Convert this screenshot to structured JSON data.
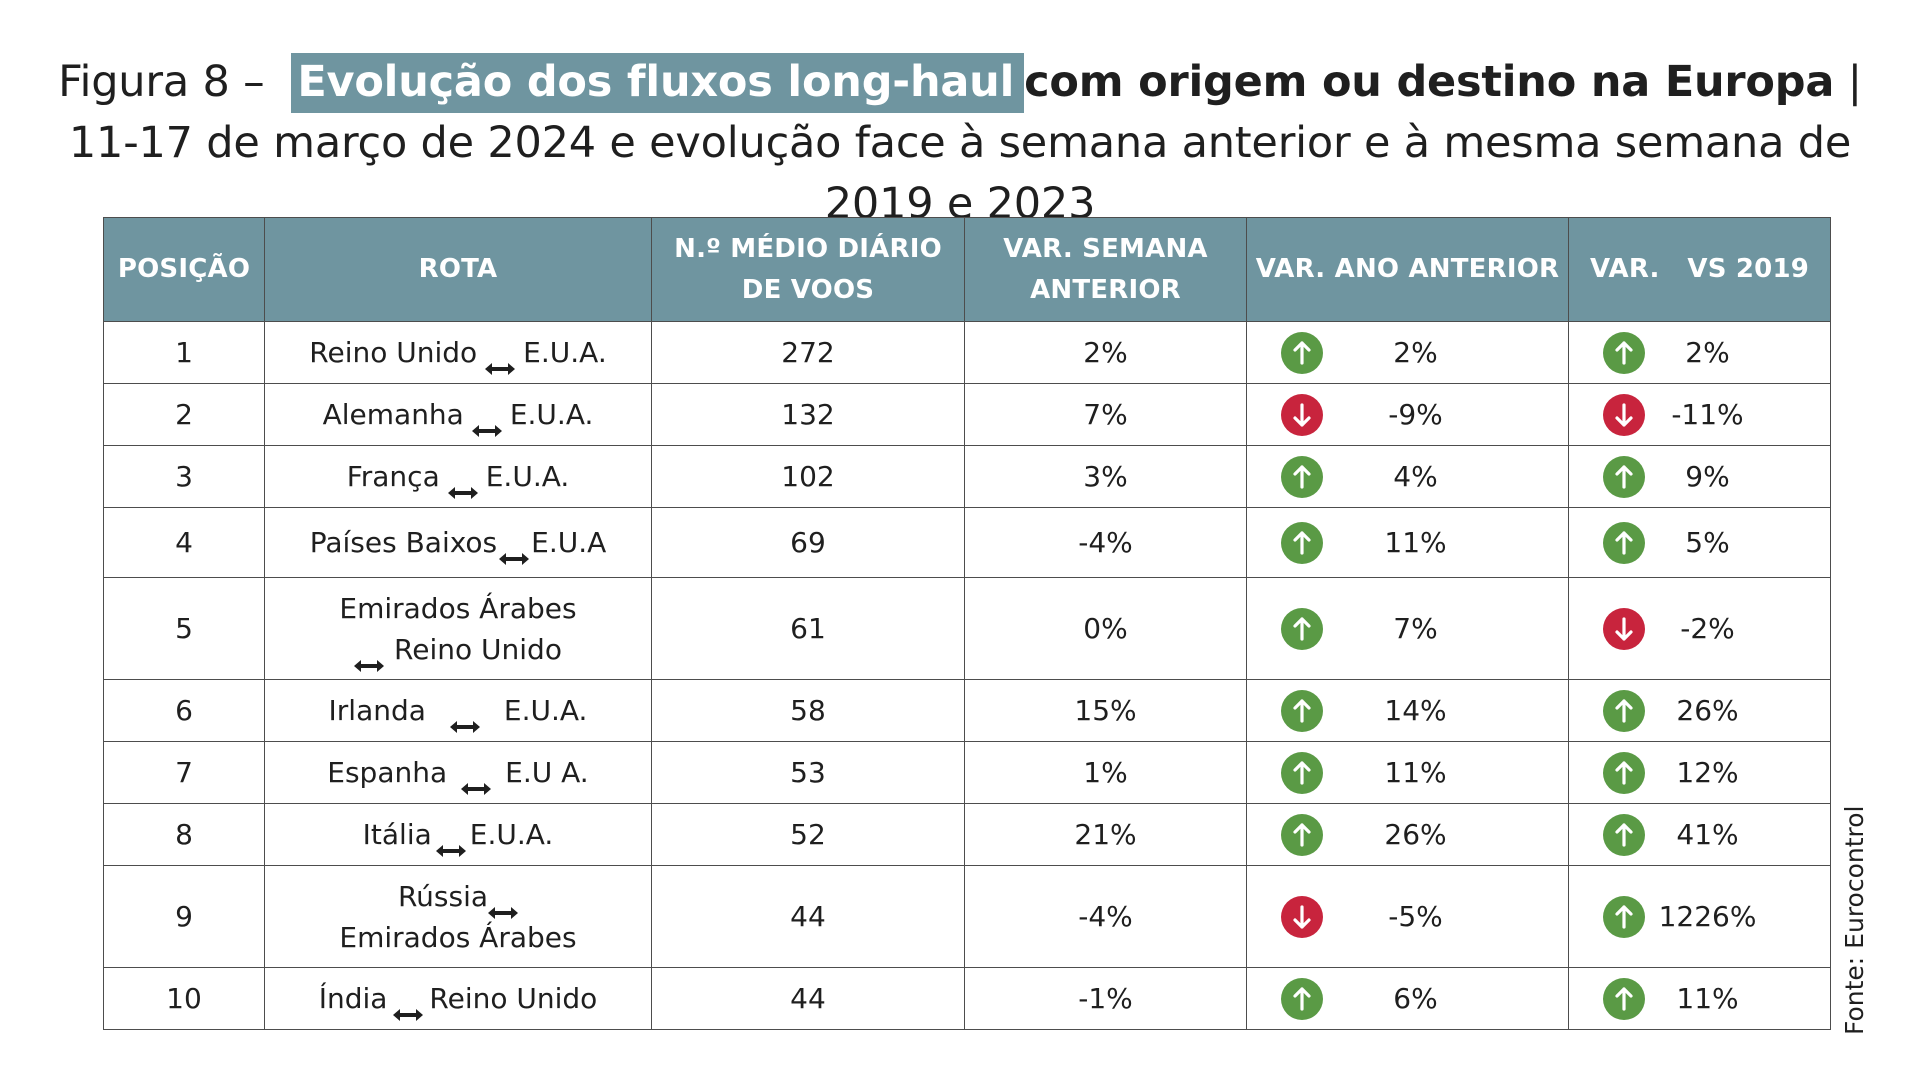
{
  "figure": {
    "title_prefix": "Figura 8 –",
    "title_highlight": "Evolução dos fluxos long-haul",
    "title_bold": "com origem ou destino na Europa",
    "title_rest": " | 11-17 de março de 2024 e evolução face à semana anterior e à mesma semana de 2019 e 2023"
  },
  "table": {
    "headers": {
      "posicao": "POSIÇÃO",
      "rota": "ROTA",
      "voos_line1": "N.º MÉDIO DIÁRIO",
      "voos_line2": "DE VOOS",
      "semana_line1": "VAR. SEMANA",
      "semana_line2": "ANTERIOR",
      "ano": "VAR. ANO ANTERIOR",
      "vs2019": "VAR.   VS 2019"
    },
    "rows": [
      {
        "pos": "1",
        "origin": "Reino Unido",
        "dest": "E.U.A.",
        "voos": "272",
        "var_semana": "2%",
        "var_ano": "2%",
        "var_ano_dir": "up",
        "var_2019": "2%",
        "var_2019_dir": "up"
      },
      {
        "pos": "2",
        "origin": "Alemanha",
        "dest": "E.U.A.",
        "voos": "132",
        "var_semana": "7%",
        "var_ano": "-9%",
        "var_ano_dir": "down",
        "var_2019": "-11%",
        "var_2019_dir": "down"
      },
      {
        "pos": "3",
        "origin": "França",
        "dest": "E.U.A.",
        "voos": "102",
        "var_semana": "3%",
        "var_ano": "4%",
        "var_ano_dir": "up",
        "var_2019": "9%",
        "var_2019_dir": "up"
      },
      {
        "pos": "4",
        "origin": "Países Baixos",
        "dest": "E.U.A",
        "voos": "69",
        "var_semana": "-4%",
        "var_ano": "11%",
        "var_ano_dir": "up",
        "var_2019": "5%",
        "var_2019_dir": "up"
      },
      {
        "pos": "5",
        "origin": "Emirados Árabes",
        "dest": "Reino Unido",
        "voos": "61",
        "var_semana": "0%",
        "var_ano": "7%",
        "var_ano_dir": "up",
        "var_2019": "-2%",
        "var_2019_dir": "down"
      },
      {
        "pos": "6",
        "origin": "Irlanda",
        "dest": "E.U.A.",
        "voos": "58",
        "var_semana": "15%",
        "var_ano": "14%",
        "var_ano_dir": "up",
        "var_2019": "26%",
        "var_2019_dir": "up"
      },
      {
        "pos": "7",
        "origin": "Espanha",
        "dest": "E.U A.",
        "voos": "53",
        "var_semana": "1%",
        "var_ano": "11%",
        "var_ano_dir": "up",
        "var_2019": "12%",
        "var_2019_dir": "up"
      },
      {
        "pos": "8",
        "origin": "Itália",
        "dest": "E.U.A.",
        "voos": "52",
        "var_semana": "21%",
        "var_ano": "26%",
        "var_ano_dir": "up",
        "var_2019": "41%",
        "var_2019_dir": "up"
      },
      {
        "pos": "9",
        "origin": "Rússia",
        "dest": "Emirados Árabes",
        "voos": "44",
        "var_semana": "-4%",
        "var_ano": "-5%",
        "var_ano_dir": "down",
        "var_2019": "1226%",
        "var_2019_dir": "up"
      },
      {
        "pos": "10",
        "origin": "Índia",
        "dest": "Reino Unido",
        "voos": "44",
        "var_semana": "-1%",
        "var_ano": "6%",
        "var_ano_dir": "up",
        "var_2019": "11%",
        "var_2019_dir": "up"
      }
    ]
  },
  "source": "Fonte: Eurocontrol",
  "colors": {
    "header_bg": "#6f95a0",
    "up": "#5a9a45",
    "down": "#c8243d"
  }
}
